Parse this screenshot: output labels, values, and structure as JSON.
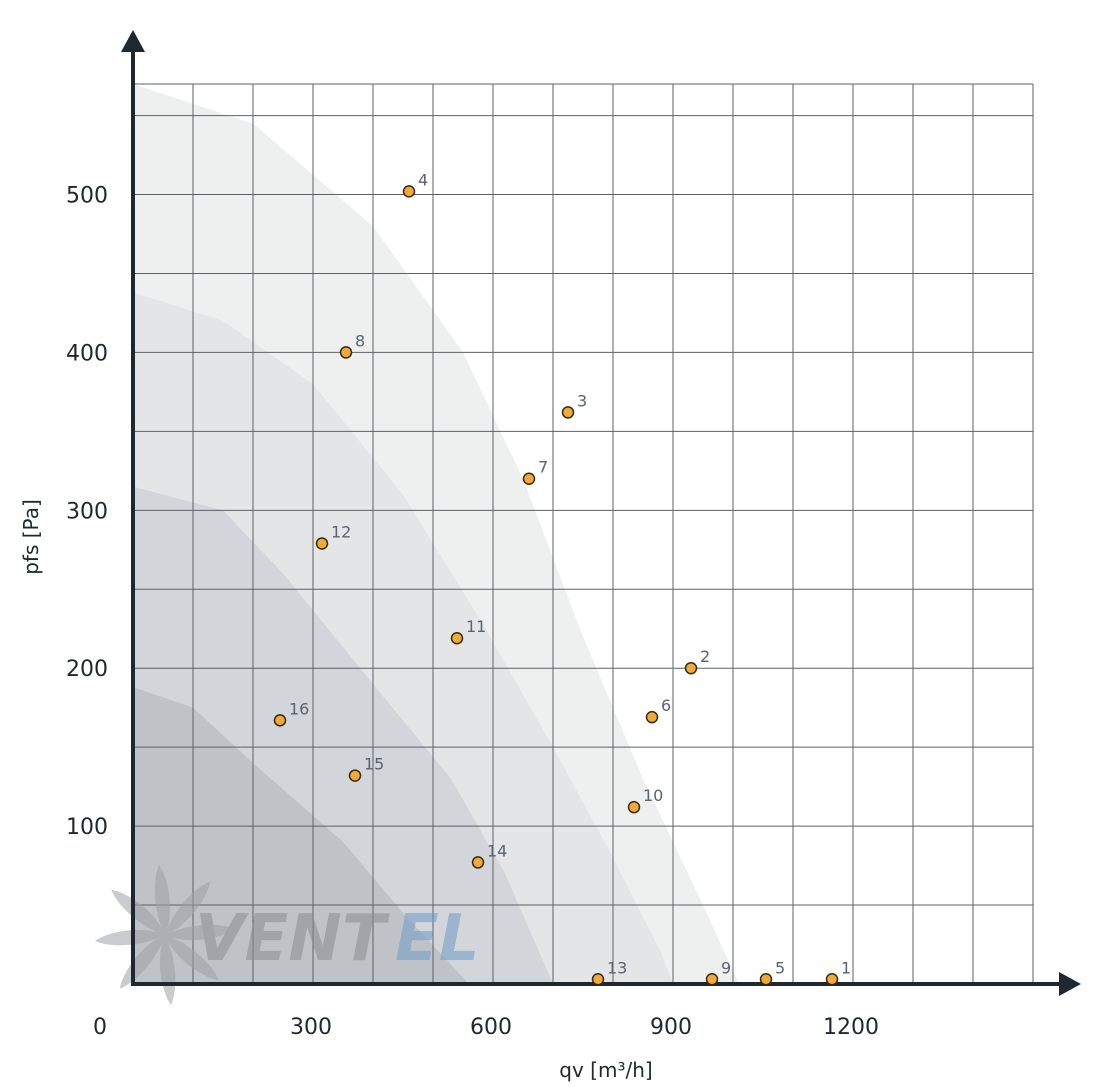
{
  "chart_data": {
    "type": "scatter",
    "xlabel": "qv [m³/h]",
    "ylabel": "pfs [Pa]",
    "xlim": [
      0,
      1500
    ],
    "ylim": [
      0,
      570
    ],
    "x_ticks": [
      0,
      300,
      600,
      900,
      1200
    ],
    "y_ticks": [
      100,
      200,
      300,
      400,
      500
    ],
    "grid": true,
    "grid_step_x": 100,
    "grid_step_y": 50,
    "points": [
      {
        "label": "1",
        "x": 1165,
        "y": 3
      },
      {
        "label": "2",
        "x": 930,
        "y": 200
      },
      {
        "label": "3",
        "x": 725,
        "y": 362
      },
      {
        "label": "4",
        "x": 460,
        "y": 502
      },
      {
        "label": "5",
        "x": 1055,
        "y": 3
      },
      {
        "label": "6",
        "x": 865,
        "y": 169
      },
      {
        "label": "7",
        "x": 660,
        "y": 320
      },
      {
        "label": "8",
        "x": 355,
        "y": 400
      },
      {
        "label": "9",
        "x": 965,
        "y": 3
      },
      {
        "label": "10",
        "x": 835,
        "y": 112
      },
      {
        "label": "11",
        "x": 540,
        "y": 219
      },
      {
        "label": "12",
        "x": 315,
        "y": 279
      },
      {
        "label": "13",
        "x": 775,
        "y": 3
      },
      {
        "label": "14",
        "x": 575,
        "y": 77
      },
      {
        "label": "15",
        "x": 370,
        "y": 132
      },
      {
        "label": "16",
        "x": 245,
        "y": 167
      }
    ],
    "regions": [
      {
        "name": "zone-1",
        "color": "#eef0f0",
        "boundary": [
          [
            0,
            575
          ],
          [
            200,
            545
          ],
          [
            400,
            480
          ],
          [
            550,
            400
          ],
          [
            650,
            320
          ],
          [
            750,
            220
          ],
          [
            850,
            130
          ],
          [
            950,
            50
          ],
          [
            1010,
            0
          ]
        ]
      },
      {
        "name": "zone-2",
        "color": "#e3e5e7",
        "boundary": [
          [
            0,
            438
          ],
          [
            150,
            420
          ],
          [
            300,
            380
          ],
          [
            450,
            310
          ],
          [
            580,
            230
          ],
          [
            700,
            150
          ],
          [
            800,
            80
          ],
          [
            880,
            20
          ],
          [
            900,
            0
          ]
        ]
      },
      {
        "name": "zone-3",
        "color": "#d2d5d9",
        "boundary": [
          [
            0,
            315
          ],
          [
            150,
            300
          ],
          [
            250,
            260
          ],
          [
            400,
            190
          ],
          [
            530,
            130
          ],
          [
            620,
            70
          ],
          [
            700,
            0
          ]
        ]
      },
      {
        "name": "zone-4",
        "color": "#bfc2c7",
        "boundary": [
          [
            0,
            188
          ],
          [
            100,
            175
          ],
          [
            200,
            140
          ],
          [
            350,
            90
          ],
          [
            450,
            45
          ],
          [
            560,
            0
          ]
        ]
      }
    ],
    "marker_color": "#f0aa3c",
    "marker_stroke": "#3a2a10"
  },
  "watermark": {
    "logo_text_1": "VENT",
    "logo_text_2": "EL"
  }
}
